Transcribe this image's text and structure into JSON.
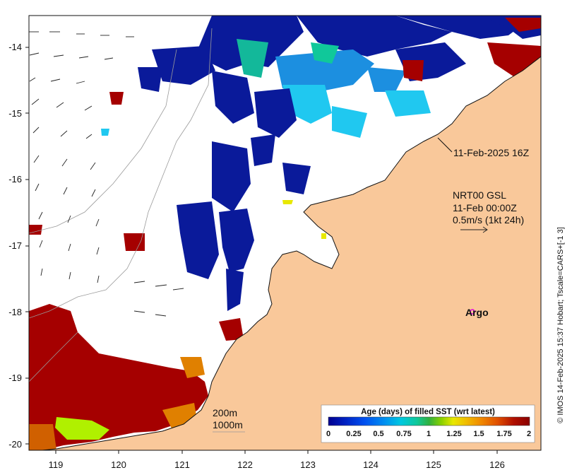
{
  "map": {
    "colors": {
      "land": "#f9c89a",
      "ocean": "#ffffff",
      "coast": "#111111",
      "bathy": "#9a9a9a",
      "argo": "#e000e0"
    },
    "x_ticks": [
      "119",
      "120",
      "121",
      "122",
      "123",
      "124",
      "125",
      "126"
    ],
    "y_ticks": [
      "-14",
      "-15",
      "-16",
      "-17",
      "-18",
      "-19",
      "-20"
    ],
    "annotations": {
      "track_time": "11-Feb-2025 16Z",
      "current_title": "NRT00 GSL",
      "current_time": "11-Feb 00:00Z",
      "current_scale": "0.5m/s (1kt 24h)",
      "argo_label": "Argo",
      "depth_200": "200m",
      "depth_1000": "1000m"
    },
    "side_caption": "© IMOS 14-Feb-2025 15:37 Hobart; Tscale=CARS+[-1 3]",
    "colorbar": {
      "title": "Age (days) of filled SST (wrt latest)",
      "ticks": [
        "0",
        "0.25",
        "0.5",
        "0.75",
        "1",
        "1.25",
        "1.5",
        "1.75",
        "2"
      ],
      "colors": [
        "#00008f",
        "#0020c0",
        "#0050f0",
        "#0090f0",
        "#00c8e0",
        "#10c89a",
        "#30b040",
        "#88d000",
        "#e8e800",
        "#f0c000",
        "#f08800",
        "#e05000",
        "#b01000",
        "#8a0000"
      ]
    }
  }
}
